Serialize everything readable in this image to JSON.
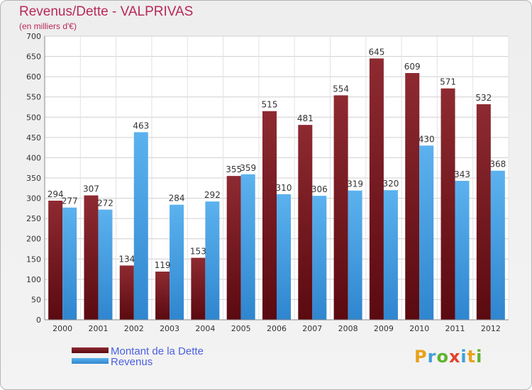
{
  "title": "Revenus/Dette - VALPRIVAS",
  "subtitle": "(en milliers d'€)",
  "logo": "Proxiti",
  "colors": {
    "dette": "#7a1a22",
    "revenus": "#3e9be0",
    "title": "#b8285a"
  },
  "chart_data": {
    "type": "bar",
    "categories": [
      "2000",
      "2001",
      "2002",
      "2003",
      "2004",
      "2005",
      "2006",
      "2007",
      "2008",
      "2009",
      "2010",
      "2011",
      "2012"
    ],
    "series": [
      {
        "name": "Montant de la Dette",
        "values": [
          294,
          307,
          134,
          119,
          153,
          355,
          515,
          481,
          554,
          645,
          609,
          571,
          532
        ]
      },
      {
        "name": "Revenus",
        "values": [
          277,
          272,
          463,
          284,
          292,
          359,
          310,
          306,
          319,
          320,
          430,
          343,
          368
        ]
      }
    ],
    "ylim": [
      0,
      700
    ],
    "yticks": [
      0,
      50,
      100,
      150,
      200,
      250,
      300,
      350,
      400,
      450,
      500,
      550,
      600,
      650,
      700
    ],
    "grid": true,
    "legend": "bottom-left"
  }
}
